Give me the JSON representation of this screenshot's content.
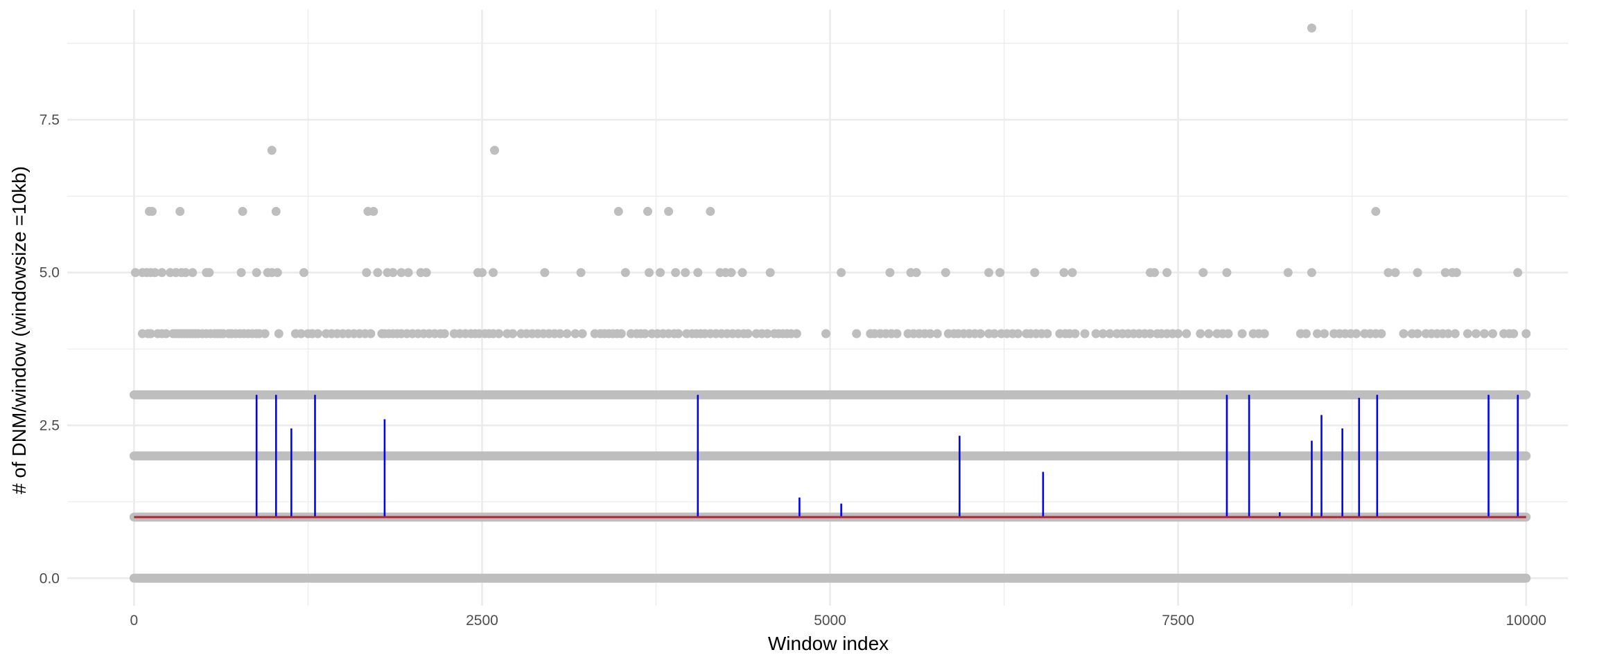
{
  "chart_data": {
    "type": "scatter",
    "title": "",
    "xlabel": "Window index",
    "ylabel": "# of DNM/window (windowsize =10kb)",
    "xlim": [
      -480,
      10300
    ],
    "ylim": [
      -0.45,
      9.3
    ],
    "x_ticks": [
      0,
      2500,
      5000,
      7500,
      10000
    ],
    "x_tick_labels": [
      "0",
      "2500",
      "5000",
      "7500",
      "10000"
    ],
    "y_ticks": [
      0,
      2.5,
      5,
      7.5
    ],
    "y_tick_labels": [
      "0.0",
      "2.5",
      "5.0",
      "7.5"
    ],
    "grid": true,
    "legend": "none",
    "colors": {
      "points": "#bebebe",
      "segments": "#0000ff",
      "baseline": "#b22234",
      "grid": "#ebebeb"
    },
    "baseline": {
      "from_x": 0,
      "to_x": 10000,
      "y": 1
    },
    "dense_bands": [
      {
        "y": 0,
        "from_x": 0,
        "to_x": 10000
      },
      {
        "y": 1,
        "from_x": 0,
        "to_x": 10000
      },
      {
        "y": 2,
        "from_x": 0,
        "to_x": 10000
      },
      {
        "y": 3,
        "from_x": 0,
        "to_x": 10000
      }
    ],
    "points": [
      {
        "x": 10,
        "y": 5
      },
      {
        "x": 60,
        "y": 5
      },
      {
        "x": 90,
        "y": 5
      },
      {
        "x": 120,
        "y": 5
      },
      {
        "x": 150,
        "y": 5
      },
      {
        "x": 200,
        "y": 5
      },
      {
        "x": 260,
        "y": 5
      },
      {
        "x": 300,
        "y": 5
      },
      {
        "x": 340,
        "y": 5
      },
      {
        "x": 370,
        "y": 5
      },
      {
        "x": 420,
        "y": 5
      },
      {
        "x": 520,
        "y": 5
      },
      {
        "x": 540,
        "y": 5
      },
      {
        "x": 770,
        "y": 5
      },
      {
        "x": 880,
        "y": 5
      },
      {
        "x": 960,
        "y": 5
      },
      {
        "x": 990,
        "y": 5
      },
      {
        "x": 1030,
        "y": 5
      },
      {
        "x": 1220,
        "y": 5
      },
      {
        "x": 1670,
        "y": 5
      },
      {
        "x": 1750,
        "y": 5
      },
      {
        "x": 1820,
        "y": 5
      },
      {
        "x": 1860,
        "y": 5
      },
      {
        "x": 1920,
        "y": 5
      },
      {
        "x": 1970,
        "y": 5
      },
      {
        "x": 2060,
        "y": 5
      },
      {
        "x": 2100,
        "y": 5
      },
      {
        "x": 2470,
        "y": 5
      },
      {
        "x": 2500,
        "y": 5
      },
      {
        "x": 2580,
        "y": 5
      },
      {
        "x": 2950,
        "y": 5
      },
      {
        "x": 3210,
        "y": 5
      },
      {
        "x": 3530,
        "y": 5
      },
      {
        "x": 3700,
        "y": 5
      },
      {
        "x": 3780,
        "y": 5
      },
      {
        "x": 3890,
        "y": 5
      },
      {
        "x": 3960,
        "y": 5
      },
      {
        "x": 4050,
        "y": 5
      },
      {
        "x": 4210,
        "y": 5
      },
      {
        "x": 4250,
        "y": 5
      },
      {
        "x": 4290,
        "y": 5
      },
      {
        "x": 4370,
        "y": 5
      },
      {
        "x": 4570,
        "y": 5
      },
      {
        "x": 5080,
        "y": 5
      },
      {
        "x": 5430,
        "y": 5
      },
      {
        "x": 5580,
        "y": 5
      },
      {
        "x": 5620,
        "y": 5
      },
      {
        "x": 5830,
        "y": 5
      },
      {
        "x": 6140,
        "y": 5
      },
      {
        "x": 6220,
        "y": 5
      },
      {
        "x": 6470,
        "y": 5
      },
      {
        "x": 6680,
        "y": 5
      },
      {
        "x": 6740,
        "y": 5
      },
      {
        "x": 7300,
        "y": 5
      },
      {
        "x": 7330,
        "y": 5
      },
      {
        "x": 7420,
        "y": 5
      },
      {
        "x": 7680,
        "y": 5
      },
      {
        "x": 7850,
        "y": 5
      },
      {
        "x": 8290,
        "y": 5
      },
      {
        "x": 8460,
        "y": 5
      },
      {
        "x": 9010,
        "y": 5
      },
      {
        "x": 9060,
        "y": 5
      },
      {
        "x": 9220,
        "y": 5
      },
      {
        "x": 9420,
        "y": 5
      },
      {
        "x": 9470,
        "y": 5
      },
      {
        "x": 9500,
        "y": 5
      },
      {
        "x": 9940,
        "y": 5
      },
      {
        "x": 110,
        "y": 6
      },
      {
        "x": 130,
        "y": 6
      },
      {
        "x": 330,
        "y": 6
      },
      {
        "x": 780,
        "y": 6
      },
      {
        "x": 1020,
        "y": 6
      },
      {
        "x": 1680,
        "y": 6
      },
      {
        "x": 1720,
        "y": 6
      },
      {
        "x": 3480,
        "y": 6
      },
      {
        "x": 3690,
        "y": 6
      },
      {
        "x": 3840,
        "y": 6
      },
      {
        "x": 4140,
        "y": 6
      },
      {
        "x": 8920,
        "y": 6
      },
      {
        "x": 990,
        "y": 7
      },
      {
        "x": 2590,
        "y": 7
      },
      {
        "x": 8460,
        "y": 9
      }
    ],
    "row_4_x": [
      60,
      100,
      120,
      170,
      200,
      230,
      280,
      300,
      320,
      340,
      360,
      380,
      400,
      420,
      440,
      460,
      490,
      520,
      550,
      580,
      600,
      620,
      640,
      680,
      700,
      730,
      760,
      790,
      820,
      850,
      880,
      900,
      940,
      1040,
      1160,
      1200,
      1250,
      1280,
      1320,
      1380,
      1420,
      1460,
      1500,
      1540,
      1580,
      1620,
      1660,
      1700,
      1780,
      1800,
      1830,
      1860,
      1890,
      1920,
      1960,
      2000,
      2040,
      2080,
      2120,
      2160,
      2200,
      2230,
      2300,
      2340,
      2380,
      2420,
      2450,
      2480,
      2520,
      2550,
      2580,
      2620,
      2680,
      2720,
      2780,
      2820,
      2860,
      2900,
      2940,
      2980,
      3020,
      3060,
      3110,
      3170,
      3220,
      3310,
      3350,
      3380,
      3410,
      3440,
      3470,
      3500,
      3570,
      3610,
      3640,
      3670,
      3720,
      3760,
      3800,
      3840,
      3880,
      3910,
      3970,
      4010,
      4040,
      4070,
      4100,
      4140,
      4180,
      4220,
      4260,
      4300,
      4340,
      4380,
      4410,
      4470,
      4510,
      4550,
      4600,
      4630,
      4660,
      4690,
      4720,
      4760,
      4970,
      5190,
      5290,
      5320,
      5360,
      5400,
      5440,
      5480,
      5560,
      5600,
      5640,
      5680,
      5720,
      5770,
      5850,
      5890,
      5920,
      5960,
      6000,
      6040,
      6080,
      6140,
      6180,
      6230,
      6270,
      6310,
      6350,
      6410,
      6440,
      6480,
      6520,
      6560,
      6650,
      6690,
      6720,
      6760,
      6830,
      6910,
      6960,
      7010,
      7060,
      7100,
      7140,
      7180,
      7220,
      7260,
      7300,
      7350,
      7380,
      7420,
      7460,
      7500,
      7560,
      7660,
      7720,
      7780,
      7820,
      7860,
      7960,
      8040,
      8080,
      8120,
      8380,
      8420,
      8500,
      8550,
      8620,
      8660,
      8700,
      8740,
      8780,
      8840,
      8880,
      8920,
      8960,
      9120,
      9180,
      9220,
      9280,
      9320,
      9360,
      9400,
      9440,
      9490,
      9580,
      9640,
      9700,
      9760,
      9840,
      9880,
      9910,
      10000
    ],
    "segments": [
      {
        "x": 880,
        "y": 3
      },
      {
        "x": 1020,
        "y": 3
      },
      {
        "x": 1130,
        "y": 2.45
      },
      {
        "x": 1300,
        "y": 3
      },
      {
        "x": 1800,
        "y": 2.6
      },
      {
        "x": 4050,
        "y": 3
      },
      {
        "x": 4780,
        "y": 1.32
      },
      {
        "x": 5080,
        "y": 1.22
      },
      {
        "x": 5930,
        "y": 2.33
      },
      {
        "x": 6530,
        "y": 1.74
      },
      {
        "x": 7850,
        "y": 3
      },
      {
        "x": 8010,
        "y": 3
      },
      {
        "x": 8230,
        "y": 1.08
      },
      {
        "x": 8460,
        "y": 2.25
      },
      {
        "x": 8530,
        "y": 2.67
      },
      {
        "x": 8680,
        "y": 2.45
      },
      {
        "x": 8800,
        "y": 2.95
      },
      {
        "x": 8930,
        "y": 3
      },
      {
        "x": 9730,
        "y": 3
      },
      {
        "x": 9940,
        "y": 3
      }
    ]
  }
}
